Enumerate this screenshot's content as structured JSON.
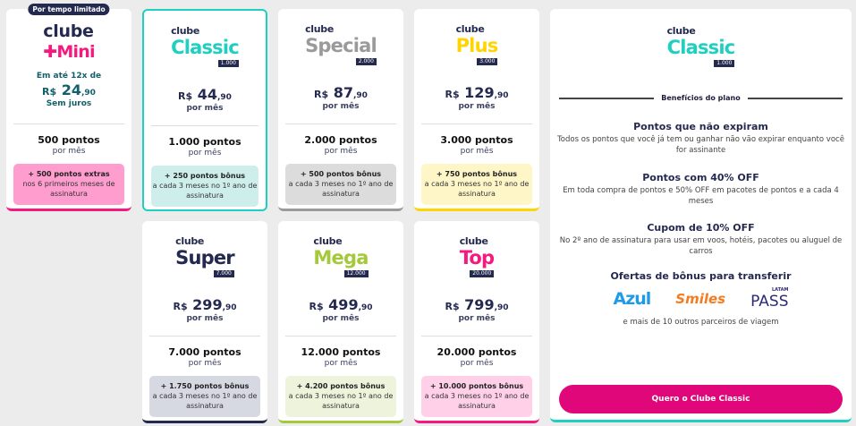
{
  "plans": [
    {
      "club": "clube",
      "name": "Mini",
      "badge": "",
      "tag": "Por tempo limitado",
      "pre": "Em até 12x de",
      "cur": "R$",
      "int": "24",
      "dec": ",90",
      "post": "Sem juros",
      "points": "500 pontos",
      "per": "por mês",
      "bonus_title": "+ 500 pontos extras",
      "bonus_text": "nos 6 primeiros meses de assinatura",
      "color": "#f5197f",
      "bonus_bg": "#ff9dce"
    },
    {
      "club": "clube",
      "name": "Classic",
      "badge": "1.000",
      "cur": "R$",
      "int": "44",
      "dec": ",90",
      "post": "por mês",
      "points": "1.000 pontos",
      "per": "por mês",
      "bonus_title": "+ 250 pontos bônus",
      "bonus_text": "a cada 3 meses no 1º ano de assinatura",
      "color": "#1fcfc0",
      "bonus_bg": "#cdeeeb",
      "selected": true
    },
    {
      "club": "clube",
      "name": "Special",
      "badge": "2.000",
      "cur": "R$",
      "int": "87",
      "dec": ",90",
      "post": "por mês",
      "points": "2.000 pontos",
      "per": "por mês",
      "bonus_title": "+ 500 pontos bônus",
      "bonus_text": "a cada 3 meses no 1º ano de assinatura",
      "color": "#9a9a9a",
      "bonus_bg": "#dcdcdc"
    },
    {
      "club": "clube",
      "name": "Plus",
      "badge": "3.000",
      "cur": "R$",
      "int": "129",
      "dec": ",90",
      "post": "por mês",
      "points": "3.000 pontos",
      "per": "por mês",
      "bonus_title": "+ 750 pontos bônus",
      "bonus_text": "a cada 3 meses no 1º ano de assinatura",
      "color": "#ffd400",
      "bonus_bg": "#fff6c8"
    },
    {
      "club": "clube",
      "name": "Super",
      "badge": "7.000",
      "cur": "R$",
      "int": "299",
      "dec": ",90",
      "post": "por mês",
      "points": "7.000 pontos",
      "per": "por mês",
      "bonus_title": "+ 1.750 pontos bônus",
      "bonus_text": "a cada 3 meses no 1º ano de assinatura",
      "color": "#24294f",
      "bonus_bg": "#d6d8e2"
    },
    {
      "club": "clube",
      "name": "Mega",
      "badge": "12.000",
      "cur": "R$",
      "int": "499",
      "dec": ",90",
      "post": "por mês",
      "points": "12.000 pontos",
      "per": "por mês",
      "bonus_title": "+ 4.200 pontos bônus",
      "bonus_text": "a cada 3 meses no 1º ano de assinatura",
      "color": "#a5c93a",
      "bonus_bg": "#eef4dc"
    },
    {
      "club": "clube",
      "name": "Top",
      "badge": "20.000",
      "cur": "R$",
      "int": "799",
      "dec": ",90",
      "post": "por mês",
      "points": "20.000 pontos",
      "per": "por mês",
      "bonus_title": "+ 10.000 pontos bônus",
      "bonus_text": "a cada 3 meses no 1º ano de assinatura",
      "color": "#f5197f",
      "bonus_bg": "#ffd0e8"
    }
  ],
  "detail": {
    "club": "clube",
    "name": "Classic",
    "badge": "1.000",
    "header": "Benefícios do plano",
    "benefits": [
      {
        "title": "Pontos que não expiram",
        "text": "Todos os pontos que você já tem ou ganhar não vão expirar enquanto você for assinante"
      },
      {
        "title": "Pontos com 40% OFF",
        "text": "Em toda compra de pontos e 50% OFF em pacotes de pontos e a cada 4 meses"
      },
      {
        "title": "Cupom de 10% OFF",
        "text": "No 2º ano de assinatura para usar em voos, hotéis, pacotes ou aluguel de carros"
      },
      {
        "title": "Ofertas de bônus para transferir",
        "text": ""
      }
    ],
    "partners": [
      "Azul",
      "Smiles",
      "LATAM",
      "PASS"
    ],
    "more": "e mais de 10 outros parceiros de viagem",
    "cta": "Quero o Clube Classic"
  }
}
